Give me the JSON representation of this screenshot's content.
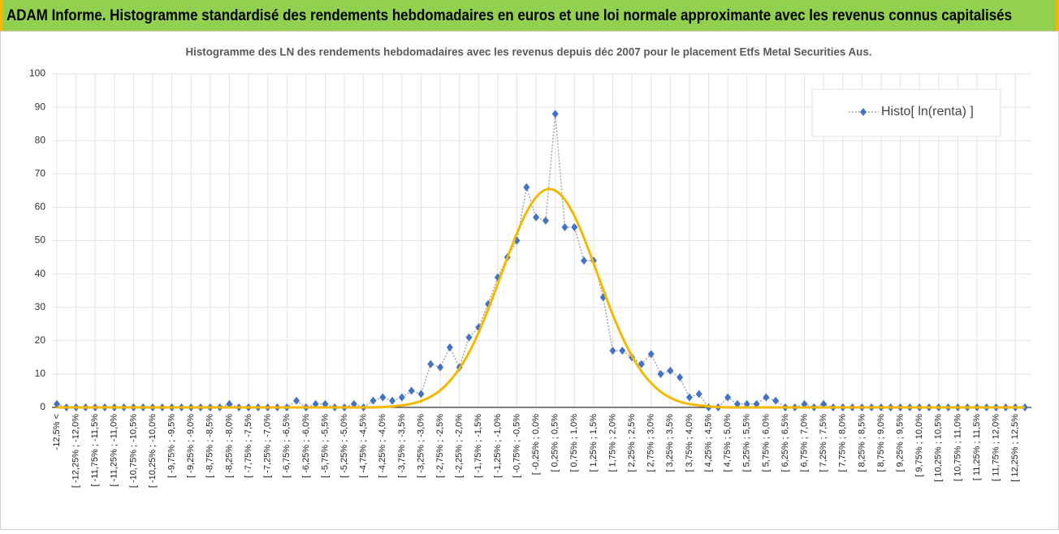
{
  "header": {
    "title": "ADAM Informe. Histogramme standardisé des rendements hebdomadaires en euros et une loi normale approximante avec les revenus connus capitalisés"
  },
  "chart_data": {
    "type": "line",
    "title": "Histogramme des LN des rendements hebdomadaires avec les revenus depuis déc 2007 pour le placement Etfs Metal Securities Aus.",
    "categories": [
      "-12,5% <",
      null,
      "[ -12,25% ; -12,0%",
      null,
      "[ -11,75% ; -11,5%",
      null,
      "[ -11,25% ; -11,0%",
      null,
      "[ -10,75% ; -10,5%",
      null,
      "[ -10,25% ; -10,0%",
      null,
      "[ -9,75% ; -9,5%",
      null,
      "[ -9,25% ; -9,0%",
      null,
      "[ -8,75% ; -8,5%",
      null,
      "[ -8,25% ; -8,0%",
      null,
      "[ -7,75% ; -7,5%",
      null,
      "[ -7,25% ; -7,0%",
      null,
      "[ -6,75% ; -6,5%",
      null,
      "[ -6,25% ; -6,0%",
      null,
      "[ -5,75% ; -5,5%",
      null,
      "[ -5,25% ; -5,0%",
      null,
      "[ -4,75% ; -4,5%",
      null,
      "[ -4,25% ; -4,0%",
      null,
      "[ -3,75% ; -3,5%",
      null,
      "[ -3,25% ; -3,0%",
      null,
      "[ -2,75% ; -2,5%",
      null,
      "[ -2,25% ; -2,0%",
      null,
      "[ -1,75% ; -1,5%",
      null,
      "[ -1,25% ; -1,0%",
      null,
      "[ -0,75% ; -0,5%",
      null,
      "[ -0,25% ; 0,0%",
      null,
      "[ 0,25% ; 0,5%",
      null,
      "[ 0,75% ; 1,0%",
      null,
      "[ 1,25% ; 1,5%",
      null,
      "[ 1,75% ; 2,0%",
      null,
      "[ 2,25% ; 2,5%",
      null,
      "[ 2,75% ; 3,0%",
      null,
      "[ 3,25% ; 3,5%",
      null,
      "[ 3,75% ; 4,0%",
      null,
      "[ 4,25% ; 4,5%",
      null,
      "[ 4,75% ; 5,0%",
      null,
      "[ 5,25% ; 5,5%",
      null,
      "[ 5,75% ; 6,0%",
      null,
      "[ 6,25% ; 6,5%",
      null,
      "[ 6,75% ; 7,0%",
      null,
      "[ 7,25% ; 7,5%",
      null,
      "[ 7,75% ; 8,0%",
      null,
      "[ 8,25% ; 8,5%",
      null,
      "[ 8,75% ; 9,0%",
      null,
      "[ 9,25% ; 9,5%",
      null,
      "[ 9,75% ; 10,0%",
      null,
      "[ 10,25% ; 10,5%",
      null,
      "[ 10,75% ; 11,0%",
      null,
      "[ 11,25% ; 11,5%",
      null,
      "[ 11,75% ; 12,0%",
      null,
      "[ 12,25% ; 12,5%",
      null
    ],
    "series": [
      {
        "name": "Histo[ ln(renta) ]",
        "color": "#4472c4",
        "values": [
          1,
          0,
          0,
          0,
          0,
          0,
          0,
          0,
          0,
          0,
          0,
          0,
          0,
          0,
          0,
          0,
          0,
          0,
          1,
          0,
          0,
          0,
          0,
          0,
          0,
          2,
          0,
          1,
          1,
          0,
          0,
          1,
          0,
          2,
          3,
          2,
          3,
          5,
          4,
          13,
          12,
          18,
          12,
          21,
          24,
          31,
          39,
          45,
          50,
          66,
          57,
          56,
          88,
          54,
          54,
          44,
          44,
          33,
          17,
          17,
          15,
          13,
          16,
          10,
          11,
          9,
          3,
          4,
          0,
          0,
          3,
          1,
          1,
          1,
          3,
          2,
          0,
          0,
          1,
          0,
          1,
          0,
          0,
          0,
          0,
          0,
          0,
          0,
          0,
          0,
          0,
          0,
          0,
          0,
          0,
          0,
          0,
          0,
          0,
          0,
          0,
          0
        ]
      },
      {
        "color": "#f5b800",
        "values": [
          0,
          0,
          0,
          0,
          0,
          0,
          0,
          0,
          0,
          0,
          0,
          0,
          0,
          0,
          0,
          0,
          0,
          0,
          0,
          0,
          0,
          0,
          0,
          0,
          0,
          0,
          0,
          0,
          0,
          0,
          0,
          0,
          0,
          0,
          0.1,
          0.3,
          0.6,
          1.1,
          1.9,
          3.2,
          5.1,
          7.9,
          11.6,
          16.4,
          22.4,
          29.4,
          37.0,
          44.8,
          52.2,
          58.5,
          63.0,
          65.3,
          65.0,
          62.3,
          57.4,
          50.8,
          43.2,
          35.4,
          27.8,
          21.1,
          15.4,
          10.8,
          7.3,
          4.7,
          2.9,
          1.7,
          1.0,
          0.6,
          0.3,
          0.1,
          0,
          0,
          0,
          0,
          0,
          0,
          0,
          0,
          0,
          0,
          0,
          0,
          0,
          0,
          0,
          0,
          0,
          0,
          0,
          0,
          0,
          0,
          0,
          0,
          0,
          0,
          0,
          0,
          0,
          0,
          0,
          0
        ]
      }
    ],
    "ylim": [
      0,
      100
    ],
    "yticks": [
      0,
      10,
      20,
      30,
      40,
      50,
      60,
      70,
      80,
      90,
      100
    ],
    "grid": true,
    "legend": "upper right"
  }
}
